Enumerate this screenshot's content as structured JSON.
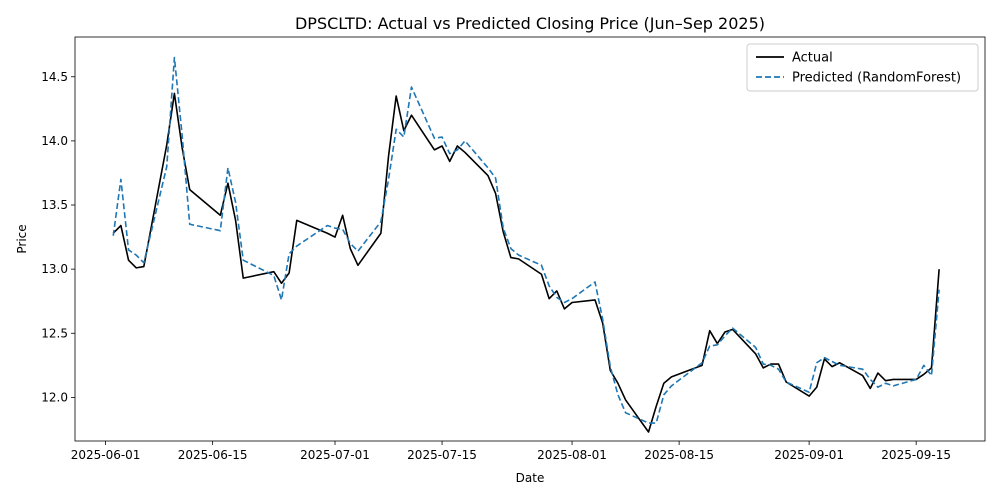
{
  "chart_data": {
    "type": "line",
    "title": "DPSCLTD: Actual vs Predicted Closing Price (Jun–Sep 2025)",
    "xlabel": "Date",
    "ylabel": "Price",
    "xlim": [
      "2025-05-28",
      "2025-09-24"
    ],
    "ylim": [
      11.66,
      14.81
    ],
    "x_ticks": [
      "2025-06-01",
      "2025-06-15",
      "2025-07-01",
      "2025-07-15",
      "2025-08-01",
      "2025-08-15",
      "2025-09-01",
      "2025-09-15"
    ],
    "y_ticks": [
      12.0,
      12.5,
      13.0,
      13.5,
      14.0,
      14.5
    ],
    "y_tick_labels": [
      "12.0",
      "12.5",
      "13.0",
      "13.5",
      "14.0",
      "14.5"
    ],
    "grid": false,
    "legend_position": "top-right",
    "series": [
      {
        "name": "Actual",
        "color": "#000000",
        "style": "solid",
        "x": [
          "2025-06-02",
          "2025-06-03",
          "2025-06-04",
          "2025-06-05",
          "2025-06-06",
          "2025-06-09",
          "2025-06-10",
          "2025-06-11",
          "2025-06-12",
          "2025-06-16",
          "2025-06-17",
          "2025-06-18",
          "2025-06-19",
          "2025-06-23",
          "2025-06-24",
          "2025-06-25",
          "2025-06-26",
          "2025-06-30",
          "2025-07-01",
          "2025-07-02",
          "2025-07-03",
          "2025-07-04",
          "2025-07-07",
          "2025-07-08",
          "2025-07-09",
          "2025-07-10",
          "2025-07-11",
          "2025-07-14",
          "2025-07-15",
          "2025-07-16",
          "2025-07-17",
          "2025-07-18",
          "2025-07-21",
          "2025-07-22",
          "2025-07-23",
          "2025-07-24",
          "2025-07-25",
          "2025-07-28",
          "2025-07-29",
          "2025-07-30",
          "2025-07-31",
          "2025-08-01",
          "2025-08-04",
          "2025-08-05",
          "2025-08-06",
          "2025-08-07",
          "2025-08-08",
          "2025-08-11",
          "2025-08-12",
          "2025-08-13",
          "2025-08-14",
          "2025-08-18",
          "2025-08-19",
          "2025-08-20",
          "2025-08-21",
          "2025-08-22",
          "2025-08-25",
          "2025-08-26",
          "2025-08-27",
          "2025-08-28",
          "2025-08-29",
          "2025-09-01",
          "2025-09-02",
          "2025-09-03",
          "2025-09-04",
          "2025-09-05",
          "2025-09-08",
          "2025-09-09",
          "2025-09-10",
          "2025-09-11",
          "2025-09-12",
          "2025-09-15",
          "2025-09-16",
          "2025-09-17",
          "2025-09-18"
        ],
        "y": [
          13.28,
          13.34,
          13.07,
          13.01,
          13.02,
          13.97,
          14.37,
          13.95,
          13.62,
          13.42,
          13.67,
          13.38,
          12.93,
          12.98,
          12.89,
          12.97,
          13.38,
          13.28,
          13.25,
          13.42,
          13.16,
          13.03,
          13.28,
          13.88,
          14.35,
          14.08,
          14.2,
          13.93,
          13.96,
          13.84,
          13.96,
          13.91,
          13.73,
          13.59,
          13.29,
          13.09,
          13.08,
          12.96,
          12.77,
          12.83,
          12.69,
          12.74,
          12.76,
          12.58,
          12.21,
          12.11,
          11.98,
          11.73,
          11.93,
          12.11,
          12.16,
          12.25,
          12.52,
          12.42,
          12.51,
          12.53,
          12.34,
          12.23,
          12.26,
          12.26,
          12.12,
          12.01,
          12.08,
          12.3,
          12.24,
          12.27,
          12.17,
          12.07,
          12.19,
          12.13,
          12.14,
          12.14,
          12.18,
          12.23,
          13.0
        ]
      },
      {
        "name": "Predicted (RandomForest)",
        "color": "#1f77b4",
        "style": "dashed",
        "x": [
          "2025-06-02",
          "2025-06-03",
          "2025-06-04",
          "2025-06-05",
          "2025-06-06",
          "2025-06-09",
          "2025-06-10",
          "2025-06-11",
          "2025-06-12",
          "2025-06-16",
          "2025-06-17",
          "2025-06-18",
          "2025-06-19",
          "2025-06-23",
          "2025-06-24",
          "2025-06-25",
          "2025-06-26",
          "2025-06-30",
          "2025-07-01",
          "2025-07-02",
          "2025-07-03",
          "2025-07-04",
          "2025-07-07",
          "2025-07-08",
          "2025-07-09",
          "2025-07-10",
          "2025-07-11",
          "2025-07-14",
          "2025-07-15",
          "2025-07-16",
          "2025-07-17",
          "2025-07-18",
          "2025-07-21",
          "2025-07-22",
          "2025-07-23",
          "2025-07-24",
          "2025-07-25",
          "2025-07-28",
          "2025-07-29",
          "2025-07-30",
          "2025-07-31",
          "2025-08-01",
          "2025-08-04",
          "2025-08-05",
          "2025-08-06",
          "2025-08-07",
          "2025-08-08",
          "2025-08-11",
          "2025-08-12",
          "2025-08-13",
          "2025-08-14",
          "2025-08-18",
          "2025-08-19",
          "2025-08-20",
          "2025-08-21",
          "2025-08-22",
          "2025-08-25",
          "2025-08-26",
          "2025-08-27",
          "2025-08-28",
          "2025-08-29",
          "2025-09-01",
          "2025-09-02",
          "2025-09-03",
          "2025-09-04",
          "2025-09-05",
          "2025-09-08",
          "2025-09-09",
          "2025-09-10",
          "2025-09-11",
          "2025-09-12",
          "2025-09-15",
          "2025-09-16",
          "2025-09-17",
          "2025-09-18"
        ],
        "y": [
          13.26,
          13.7,
          13.15,
          13.11,
          13.05,
          13.8,
          14.65,
          14.05,
          13.35,
          13.3,
          13.79,
          13.52,
          13.07,
          12.95,
          12.76,
          13.12,
          13.18,
          13.34,
          13.32,
          13.31,
          13.2,
          13.14,
          13.37,
          13.7,
          14.09,
          14.03,
          14.42,
          14.02,
          14.03,
          13.9,
          13.93,
          14.0,
          13.79,
          13.71,
          13.32,
          13.16,
          13.11,
          13.03,
          12.87,
          12.78,
          12.74,
          12.77,
          12.9,
          12.61,
          12.24,
          12.02,
          11.88,
          11.8,
          11.8,
          12.02,
          12.09,
          12.27,
          12.4,
          12.41,
          12.48,
          12.54,
          12.39,
          12.26,
          12.25,
          12.22,
          12.12,
          12.04,
          12.27,
          12.31,
          12.28,
          12.25,
          12.22,
          12.14,
          12.08,
          12.11,
          12.09,
          12.14,
          12.25,
          12.17,
          12.84
        ]
      }
    ]
  }
}
